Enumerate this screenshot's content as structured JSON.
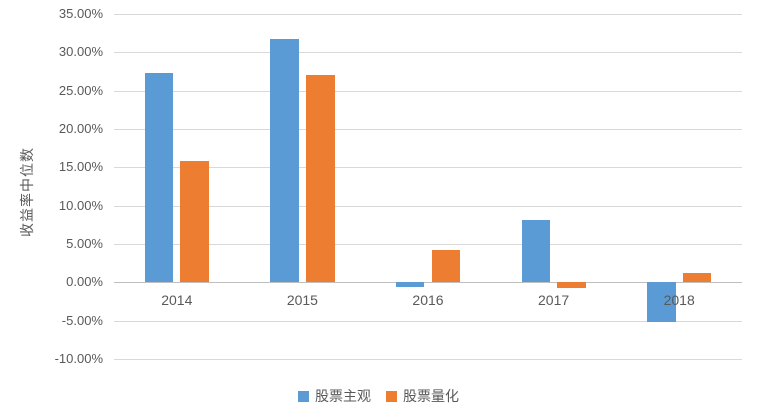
{
  "chart_data": {
    "type": "bar",
    "title": "",
    "xlabel": "",
    "ylabel": "收益率中位数",
    "categories": [
      "2014",
      "2015",
      "2016",
      "2017",
      "2018"
    ],
    "series": [
      {
        "name": "股票主观",
        "color": "#5B9BD5",
        "values": [
          27.3,
          31.7,
          -0.6,
          8.2,
          -5.2
        ]
      },
      {
        "name": "股票量化",
        "color": "#ED7D31",
        "values": [
          15.9,
          27.0,
          4.2,
          -0.8,
          1.2
        ]
      }
    ],
    "ylim": [
      -10,
      35
    ],
    "ytick_step": 5,
    "ytick_format": "0.00%",
    "grid": true,
    "legend_position": "bottom"
  },
  "colors": {
    "gridline": "#d9d9d9",
    "zero_axis": "#bfbfbf",
    "text": "#595959",
    "background": "#ffffff"
  }
}
